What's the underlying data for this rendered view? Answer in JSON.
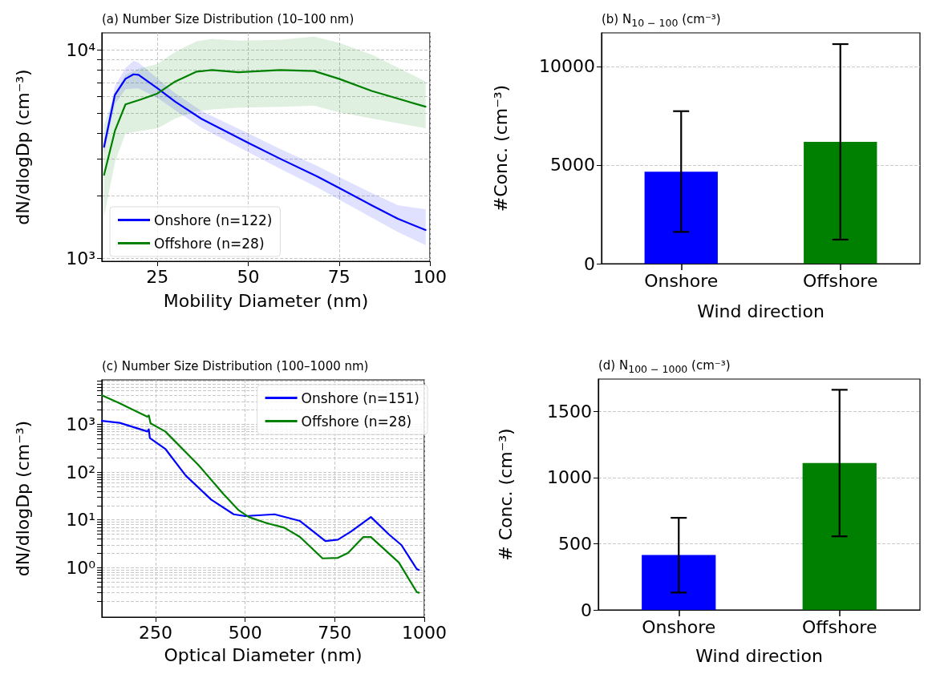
{
  "chart_data": [
    {
      "type": "line",
      "title": "(a) Number Size Distribution (10–100 nm)",
      "xlabel": "Mobility Diameter (nm)",
      "ylabel": "dN/dlogDp (cm⁻³)",
      "log": "y",
      "grid": true,
      "legend": "bottom left",
      "xlim": [
        9.7,
        100
      ],
      "xticks": [
        25,
        50,
        75,
        100
      ],
      "ylim": [
        970,
        12100
      ],
      "yticks": [
        {
          "value": 1000,
          "label": "10³"
        },
        {
          "value": 2000,
          "label": null
        },
        {
          "value": 3000,
          "label": null
        },
        {
          "value": 4000,
          "label": null
        },
        {
          "value": 5000,
          "label": null
        },
        {
          "value": 6000,
          "label": null
        },
        {
          "value": 7000,
          "label": null
        },
        {
          "value": 8000,
          "label": null
        },
        {
          "value": 9000,
          "label": null
        },
        {
          "value": 10000,
          "label": "10⁴"
        }
      ],
      "series": [
        {
          "name": "Onshore (n=122)",
          "color": "#0000ff",
          "x": [
            10.3,
            13.3,
            16.2,
            18.4,
            19.8,
            25,
            29.9,
            37.1,
            50,
            58.8,
            68.9,
            75,
            84,
            91.2,
            98.8
          ],
          "values": [
            3435,
            6100,
            7280,
            7650,
            7610,
            6560,
            5660,
            4680,
            3590,
            3010,
            2480,
            2180,
            1800,
            1550,
            1370
          ],
          "upper": [
            3650,
            6700,
            8200,
            8870,
            8700,
            7300,
            6200,
            5100,
            3980,
            3350,
            2780,
            2460,
            2060,
            1800,
            1720
          ],
          "lower": [
            3200,
            5500,
            6500,
            6560,
            6550,
            5900,
            5150,
            4250,
            3240,
            2700,
            2200,
            1920,
            1570,
            1340,
            1160
          ]
        },
        {
          "name": "Offshore (n=28)",
          "color": "#008000",
          "x": [
            10.3,
            13.3,
            16.2,
            20.5,
            25,
            29.9,
            35.7,
            40,
            47.3,
            58.8,
            68.1,
            75,
            84,
            98.8
          ],
          "values": [
            2520,
            4100,
            5490,
            5800,
            6190,
            7070,
            7880,
            8020,
            7830,
            8020,
            7940,
            7280,
            6370,
            5350
          ],
          "upper": [
            4350,
            6200,
            7610,
            8200,
            8560,
            9800,
            11000,
            11300,
            11100,
            11200,
            11600,
            10830,
            9500,
            7060
          ],
          "lower": [
            1600,
            2900,
            3980,
            4100,
            4220,
            4700,
            5100,
            5190,
            5300,
            5350,
            5420,
            5040,
            4700,
            4220
          ]
        }
      ]
    },
    {
      "type": "bar",
      "title": "(b) N$_{10 − 100}$ (cm⁻³)",
      "xlabel": "Wind direction",
      "ylabel": "#Conc. (cm⁻³)",
      "grid": "y",
      "categories": [
        "Onshore",
        "Offshore"
      ],
      "values": [
        4660,
        6170
      ],
      "colors": [
        "#0000ff",
        "#008000"
      ],
      "errors": [
        [
          1610,
          7730
        ],
        [
          1220,
          11130
        ]
      ],
      "ylim": [
        0,
        11700
      ],
      "yticks": [
        0,
        5000,
        10000
      ]
    },
    {
      "type": "line",
      "title": "(c) Number Size Distribution (100–1000 nm)",
      "xlabel": "Optical Diameter (nm)",
      "ylabel": "dN/dlogDp (cm⁻³)",
      "log": "y",
      "grid": true,
      "legend": "top right",
      "xlim": [
        100,
        1000
      ],
      "xticks": [
        250,
        500,
        750,
        1000
      ],
      "ylim": [
        0.093,
        8450
      ],
      "yticks": [
        {
          "value": 0.2,
          "label": null
        },
        {
          "value": 0.3,
          "label": null
        },
        {
          "value": 0.4,
          "label": null
        },
        {
          "value": 0.5,
          "label": null
        },
        {
          "value": 0.6,
          "label": null
        },
        {
          "value": 0.7,
          "label": null
        },
        {
          "value": 0.8,
          "label": null
        },
        {
          "value": 0.9,
          "label": null
        },
        {
          "value": 1,
          "label": "10⁰"
        },
        {
          "value": 2,
          "label": null
        },
        {
          "value": 3,
          "label": null
        },
        {
          "value": 4,
          "label": null
        },
        {
          "value": 5,
          "label": null
        },
        {
          "value": 6,
          "label": null
        },
        {
          "value": 7,
          "label": null
        },
        {
          "value": 8,
          "label": null
        },
        {
          "value": 9,
          "label": null
        },
        {
          "value": 10,
          "label": "10¹"
        },
        {
          "value": 20,
          "label": null
        },
        {
          "value": 30,
          "label": null
        },
        {
          "value": 40,
          "label": null
        },
        {
          "value": 50,
          "label": null
        },
        {
          "value": 60,
          "label": null
        },
        {
          "value": 70,
          "label": null
        },
        {
          "value": 80,
          "label": null
        },
        {
          "value": 90,
          "label": null
        },
        {
          "value": 100,
          "label": "10²"
        },
        {
          "value": 200,
          "label": null
        },
        {
          "value": 300,
          "label": null
        },
        {
          "value": 400,
          "label": null
        },
        {
          "value": 500,
          "label": null
        },
        {
          "value": 600,
          "label": null
        },
        {
          "value": 700,
          "label": null
        },
        {
          "value": 800,
          "label": null
        },
        {
          "value": 900,
          "label": null
        },
        {
          "value": 1000,
          "label": "10³"
        },
        {
          "value": 2000,
          "label": null
        },
        {
          "value": 3000,
          "label": null
        },
        {
          "value": 4000,
          "label": null
        },
        {
          "value": 5000,
          "label": null
        },
        {
          "value": 6000,
          "label": null
        },
        {
          "value": 7000,
          "label": null
        },
        {
          "value": 8000,
          "label": null
        }
      ],
      "series": [
        {
          "name": "Onshore (n=151)",
          "color": "#0000ff",
          "x": [
            100,
            150,
            227,
            231,
            234,
            277,
            334,
            405,
            468,
            500,
            582,
            653,
            724,
            759,
            795,
            851,
            901,
            936,
            979,
            985
          ],
          "values": [
            1180,
            1070,
            706,
            780,
            512,
            306,
            84.6,
            26.6,
            13.1,
            12.0,
            13.1,
            9.5,
            3.62,
            3.86,
            5.68,
            11.5,
            4.99,
            2.99,
            0.94,
            0.9
          ]
        },
        {
          "name": "Offshore (n=28)",
          "color": "#008000",
          "x": [
            100,
            150,
            227,
            231,
            236,
            277,
            369,
            440,
            482,
            510,
            560,
            609,
            653,
            716,
            759,
            787,
            830,
            851,
            929,
            979,
            985
          ],
          "values": [
            4010,
            2730,
            1430,
            1530,
            1040,
            706,
            142,
            34.4,
            15.9,
            11.5,
            8.57,
            6.89,
            4.39,
            1.57,
            1.61,
            2.03,
            4.39,
            4.39,
            1.29,
            0.31,
            0.3
          ]
        }
      ]
    },
    {
      "type": "bar",
      "title": "(d) N$_{100 − 1000}$ (cm⁻³)",
      "xlabel": "Wind direction",
      "ylabel": "# Conc. (cm⁻³)",
      "grid": "y",
      "categories": [
        "Onshore",
        "Offshore"
      ],
      "values": [
        415,
        1110
      ],
      "colors": [
        "#0000ff",
        "#008000"
      ],
      "errors": [
        [
          131,
          696
        ],
        [
          556,
          1664
        ]
      ],
      "ylim": [
        0,
        1745
      ],
      "yticks": [
        0,
        500,
        1000,
        1500
      ]
    }
  ]
}
